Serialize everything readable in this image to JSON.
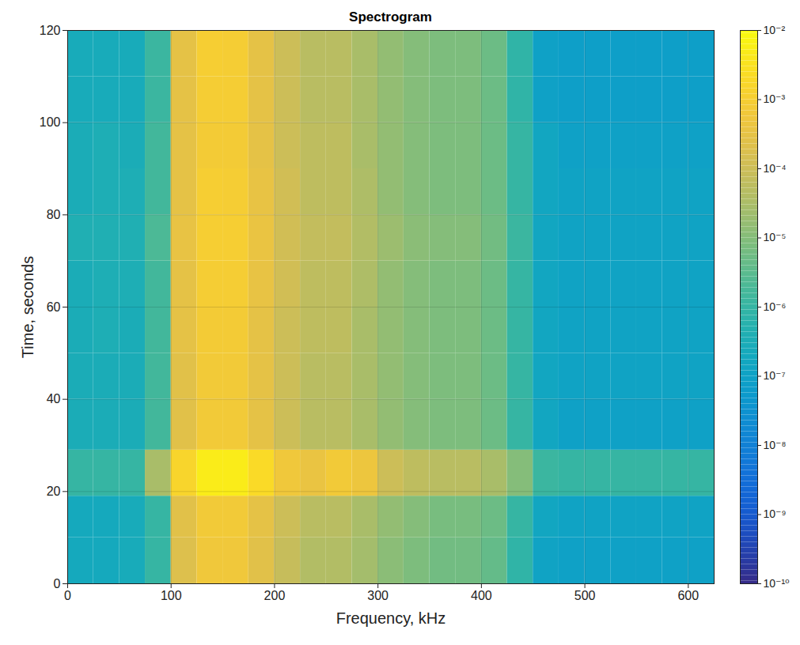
{
  "chart_data": {
    "type": "heatmap",
    "title": "Spectrogram",
    "x_label": "Frequency, kHz",
    "y_label": "Time, seconds",
    "xlim": [
      0,
      625
    ],
    "ylim": [
      0,
      120
    ],
    "xticks": [
      0,
      100,
      200,
      300,
      400,
      500,
      600
    ],
    "yticks": [
      0,
      20,
      40,
      60,
      80,
      100,
      120
    ],
    "grid": true,
    "x_edges": [
      0,
      25,
      50,
      75,
      100,
      125,
      150,
      175,
      200,
      225,
      250,
      275,
      300,
      325,
      350,
      375,
      400,
      425,
      450,
      475,
      500,
      525,
      550,
      575,
      600,
      625
    ],
    "y_edges": [
      0,
      10,
      19,
      29,
      40,
      50,
      60,
      70,
      80,
      90,
      100,
      110,
      120
    ],
    "cells": [
      [
        2e-07,
        2e-07,
        2.5e-07,
        1e-06,
        0.0002,
        0.0006,
        0.0006,
        0.00025,
        8e-05,
        4e-05,
        4e-05,
        2.5e-05,
        1.2e-05,
        8e-06,
        6e-06,
        6e-06,
        4e-06,
        8e-07,
        1.2e-07,
        1e-07,
        1e-07,
        1e-07,
        1e-07,
        1e-07,
        1e-07
      ],
      [
        2e-07,
        2e-07,
        2.5e-07,
        1e-06,
        0.00025,
        0.0007,
        0.0007,
        0.0003,
        0.0001,
        5e-05,
        5e-05,
        3e-05,
        1.5e-05,
        1e-05,
        7e-06,
        7e-06,
        5e-06,
        1e-06,
        1.5e-07,
        1.2e-07,
        1.2e-07,
        1.2e-07,
        1.2e-07,
        1.2e-07,
        1.2e-07
      ],
      [
        1e-06,
        1e-06,
        1e-06,
        3e-05,
        0.0015,
        0.005,
        0.005,
        0.002,
        0.0006,
        0.0004,
        0.0007,
        0.0005,
        0.0001,
        6e-05,
        5e-05,
        5e-05,
        3e-05,
        1e-05,
        1.2e-06,
        1e-06,
        1e-06,
        1e-06,
        1e-06,
        1e-06,
        1e-06
      ],
      [
        3e-07,
        3e-07,
        3e-07,
        1.5e-06,
        0.00025,
        0.0007,
        0.0007,
        0.0003,
        0.0001,
        5e-05,
        5e-05,
        3e-05,
        1.5e-05,
        1e-05,
        8e-06,
        8e-06,
        5e-06,
        1e-06,
        1.5e-07,
        1e-07,
        1e-07,
        1e-07,
        1e-07,
        1e-07,
        1e-07
      ],
      [
        3e-07,
        3e-07,
        3e-07,
        1.5e-06,
        0.00025,
        0.0007,
        0.0007,
        0.0003,
        0.0001,
        5e-05,
        5e-05,
        3e-05,
        1.5e-05,
        1e-05,
        8e-06,
        8e-06,
        5e-06,
        1e-06,
        1.5e-07,
        1.2e-07,
        1.2e-07,
        1.2e-07,
        1.2e-07,
        1.2e-07,
        1.2e-07
      ],
      [
        3e-07,
        3.5e-07,
        3e-07,
        1.5e-06,
        0.0003,
        0.0008,
        0.0008,
        0.0003,
        0.0001,
        6e-05,
        6e-05,
        3e-05,
        1.5e-05,
        1e-05,
        8e-06,
        8e-06,
        5e-06,
        1e-06,
        1.5e-07,
        1.2e-07,
        1.2e-07,
        1.2e-07,
        1.2e-07,
        1.2e-07,
        1.2e-07
      ],
      [
        3e-07,
        3.5e-07,
        3.5e-07,
        1.5e-06,
        0.0003,
        0.0009,
        0.0009,
        0.00035,
        0.00012,
        6e-05,
        6e-05,
        3.5e-05,
        1.5e-05,
        1e-05,
        8e-06,
        8e-06,
        5e-06,
        1e-06,
        1.5e-07,
        1.2e-07,
        1.2e-07,
        1.2e-07,
        1.2e-07,
        1.2e-07,
        1.2e-07
      ],
      [
        4e-07,
        4e-07,
        4e-07,
        2e-06,
        0.00035,
        0.001,
        0.001,
        0.0004,
        0.00012,
        7e-05,
        7e-05,
        4e-05,
        2e-05,
        1.2e-05,
        1e-05,
        1e-05,
        6e-06,
        1.2e-06,
        1.5e-07,
        1.2e-07,
        1.2e-07,
        1.2e-07,
        1.2e-07,
        1.2e-07,
        1.2e-07
      ],
      [
        3e-07,
        3.5e-07,
        3.5e-07,
        1.5e-06,
        0.0003,
        0.001,
        0.0009,
        0.00035,
        0.00012,
        6e-05,
        6e-05,
        3.5e-05,
        1.5e-05,
        1e-05,
        8e-06,
        8e-06,
        5e-06,
        1e-06,
        1.5e-07,
        1.2e-07,
        1.2e-07,
        1.2e-07,
        1.2e-07,
        1.2e-07,
        1.2e-07
      ],
      [
        3e-07,
        3.5e-07,
        3e-07,
        1.5e-06,
        0.0003,
        0.0008,
        0.0008,
        0.0003,
        0.0001,
        6e-05,
        6e-05,
        3e-05,
        1.5e-05,
        1e-05,
        8e-06,
        8e-06,
        5e-06,
        1e-06,
        1.5e-07,
        1e-07,
        1e-07,
        1e-07,
        1e-07,
        1e-07,
        1e-07
      ],
      [
        2.5e-07,
        2.5e-07,
        2.5e-07,
        1.2e-06,
        0.0003,
        0.0009,
        0.0009,
        0.0003,
        0.0001,
        5e-05,
        5e-05,
        3e-05,
        1.5e-05,
        1e-05,
        8e-06,
        8e-06,
        5e-06,
        8e-07,
        1e-07,
        8e-08,
        8e-08,
        8e-08,
        8e-08,
        8e-08,
        8e-08
      ],
      [
        2.5e-07,
        2.5e-07,
        2.5e-07,
        1.2e-06,
        0.0003,
        0.001,
        0.0009,
        0.0003,
        0.0001,
        5e-05,
        5e-05,
        3e-05,
        1.5e-05,
        1e-05,
        8e-06,
        8e-06,
        5e-06,
        8e-07,
        1e-07,
        8e-08,
        8e-08,
        8e-08,
        8e-08,
        8e-08,
        8e-08
      ]
    ],
    "colorbar_range": [
      1e-10,
      0.01
    ],
    "colorbar_ticks": [
      {
        "value": 1e-10,
        "label": "10⁻¹⁰"
      },
      {
        "value": 1e-09,
        "label": "10⁻⁹"
      },
      {
        "value": 1e-08,
        "label": "10⁻⁸"
      },
      {
        "value": 1e-07,
        "label": "10⁻⁷"
      },
      {
        "value": 1e-06,
        "label": "10⁻⁶"
      },
      {
        "value": 1e-05,
        "label": "10⁻⁵"
      },
      {
        "value": 0.0001,
        "label": "10⁻⁴"
      },
      {
        "value": 0.001,
        "label": "10⁻³"
      },
      {
        "value": 0.01,
        "label": "10⁻²"
      }
    ]
  }
}
